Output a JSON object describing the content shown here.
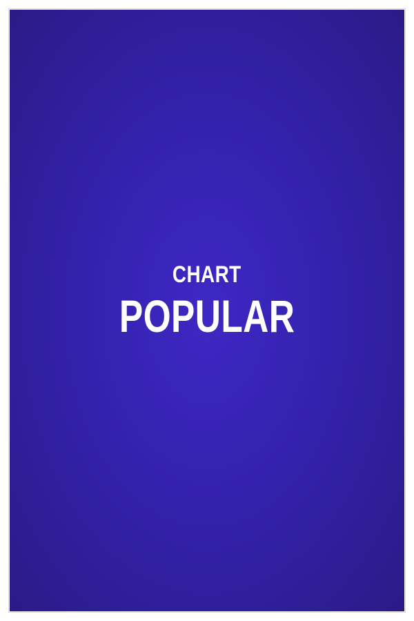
{
  "cover": {
    "kicker": "CHART",
    "headline": "POPULAR",
    "colors": {
      "background_center": "#3d28c4",
      "background_edge": "#2a1b86",
      "text": "#ffffff",
      "frame_border": "#d9d9de"
    }
  }
}
